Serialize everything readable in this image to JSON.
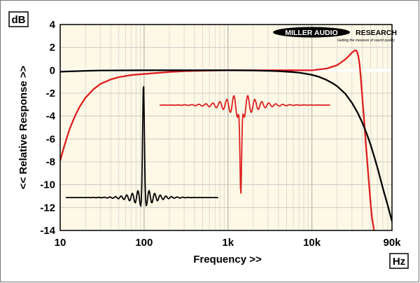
{
  "chart_data": {
    "type": "line",
    "ylabel": "<< Relative Response >>",
    "xlabel": "Frequency >>",
    "y_unit": "dB",
    "x_unit": "Hz",
    "xlim": [
      10,
      90000
    ],
    "ylim": [
      -14,
      4
    ],
    "x_scale": "log",
    "grid": true,
    "x_ticks": [
      {
        "value": 10,
        "label": "10"
      },
      {
        "value": 100,
        "label": "100"
      },
      {
        "value": 1000,
        "label": "1k"
      },
      {
        "value": 10000,
        "label": "10k"
      },
      {
        "value": 90000,
        "label": "90k"
      }
    ],
    "y_ticks": [
      4,
      2,
      0,
      -2,
      -4,
      -6,
      -8,
      -10,
      -12,
      -14
    ],
    "series": [
      {
        "color": "#dd1f1f",
        "x": [
          10,
          11,
          12,
          13,
          15,
          17,
          20,
          25,
          30,
          40,
          50,
          70,
          100,
          150,
          200,
          300,
          500,
          700,
          1000,
          2000,
          5000,
          10000,
          15000,
          20000,
          25000,
          28000,
          30000,
          32000,
          33000,
          34000,
          35000,
          36000,
          37000,
          38000,
          40000,
          42000,
          44000,
          46000,
          48000,
          50000,
          52000,
          55000,
          57000
        ],
        "y": [
          -7.9,
          -6.8,
          -5.9,
          -5.1,
          -4.0,
          -3.2,
          -2.4,
          -1.65,
          -1.2,
          -0.8,
          -0.6,
          -0.42,
          -0.32,
          -0.22,
          -0.15,
          -0.08,
          -0.04,
          -0.02,
          0.0,
          0.0,
          0.0,
          0.0,
          0.15,
          0.45,
          0.95,
          1.3,
          1.55,
          1.7,
          1.75,
          1.7,
          1.5,
          1.1,
          0.5,
          -0.4,
          -2.5,
          -4.5,
          -6.5,
          -8.3,
          -10.0,
          -11.6,
          -12.9,
          -14.0,
          -14.8
        ]
      },
      {
        "color": "#000000",
        "x": [
          10,
          15,
          20,
          30,
          50,
          100,
          200,
          500,
          1000,
          2000,
          3000,
          4000,
          5000,
          6000,
          7000,
          8000,
          10000,
          12000,
          15000,
          18000,
          20000,
          25000,
          30000,
          35000,
          40000,
          45000,
          50000,
          55000,
          60000,
          65000,
          70000,
          80000,
          90000
        ],
        "y": [
          -0.12,
          -0.08,
          -0.05,
          -0.02,
          -0.01,
          0.0,
          0.0,
          0.0,
          0.0,
          -0.02,
          -0.05,
          -0.08,
          -0.12,
          -0.16,
          -0.21,
          -0.27,
          -0.4,
          -0.56,
          -0.85,
          -1.17,
          -1.4,
          -2.05,
          -2.85,
          -3.7,
          -4.6,
          -5.55,
          -6.5,
          -7.5,
          -8.45,
          -9.4,
          -10.3,
          -11.8,
          -13.2
        ]
      }
    ]
  },
  "logo": {
    "brand_left": "MILLER AUDIO",
    "brand_right": "RESEARCH",
    "tagline": "Getting the measure of sound quality"
  }
}
